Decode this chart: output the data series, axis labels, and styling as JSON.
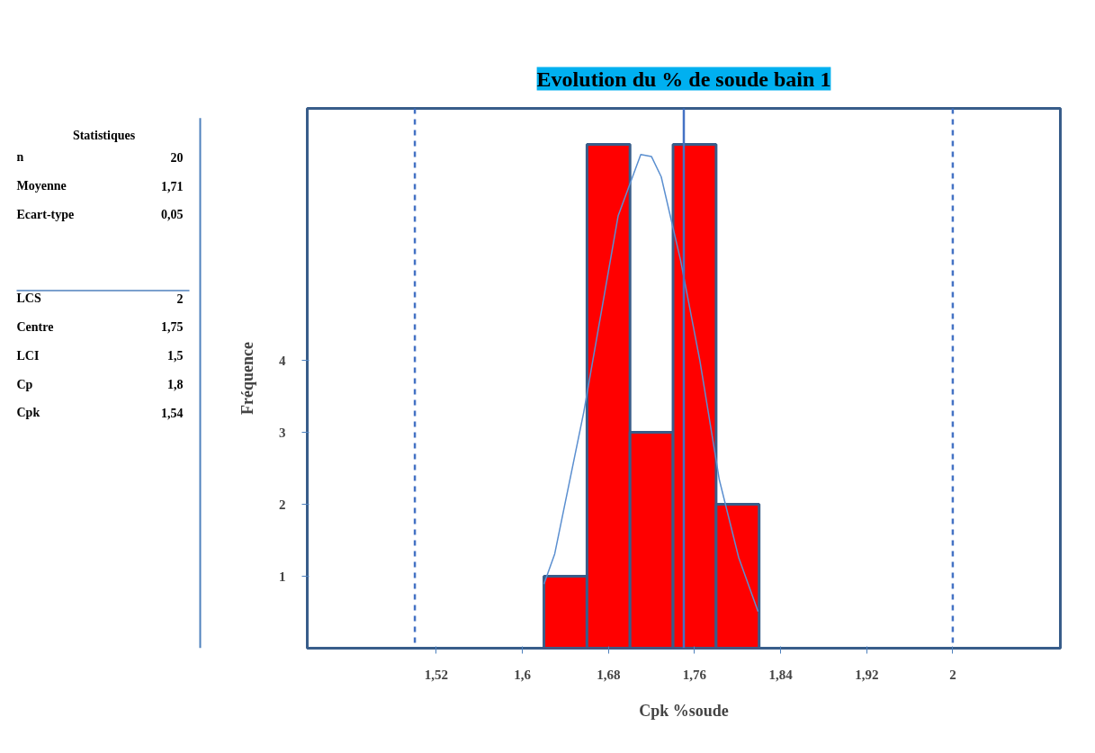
{
  "chart_data": [
    {
      "type": "other",
      "title": "Statistiques",
      "categories": [
        "n",
        "Moyenne",
        "Ecart-type",
        "LCS",
        "Centre",
        "LCI",
        "Cp",
        "Cpk"
      ],
      "value_labels": [
        "20",
        "1,71",
        "0,05",
        "2",
        "1,75",
        "1,5",
        "1,8",
        "1,54"
      ]
    },
    {
      "type": "histogram",
      "title": "Evolution du % de soude bain 1",
      "xlabel": "Cpk %soude",
      "ylabel": "Fréquence",
      "bins": [
        1.62,
        1.66,
        1.7,
        1.74,
        1.78,
        1.82
      ],
      "values": [
        1,
        7,
        3,
        7,
        2
      ],
      "color": "#ff0000",
      "series": [
        {
          "type": "line",
          "color": "#5b8fd0",
          "x": [
            1.62,
            1.63,
            1.657,
            1.689,
            1.71,
            1.72,
            1.729,
            1.747,
            1.765,
            1.783,
            1.801,
            1.819
          ],
          "values": [
            0.89,
            1.31,
            3.28,
            6.01,
            6.86,
            6.83,
            6.55,
            5.39,
            3.99,
            2.34,
            1.26,
            0.51
          ]
        }
      ],
      "xlim": [
        1.4,
        2.1
      ],
      "xticks": [
        {
          "value": 1.52,
          "label": "1,52"
        },
        {
          "value": 1.6,
          "label": "1,6"
        },
        {
          "value": 1.68,
          "label": "1,68"
        },
        {
          "value": 1.76,
          "label": "1,76"
        },
        {
          "value": 1.84,
          "label": "1,84"
        },
        {
          "value": 1.92,
          "label": "1,92"
        },
        2
      ],
      "ylim": [
        0,
        7.5
      ],
      "yticks": [
        1,
        2,
        3,
        4
      ],
      "ref_lines": [
        {
          "axis": "x",
          "value": 1.5,
          "color": "#4472c4",
          "line_style": "dashed"
        },
        {
          "axis": "x",
          "value": 2,
          "color": "#4472c4",
          "line_style": "dashed"
        },
        {
          "axis": "x",
          "value": 1.75,
          "color": "#4472c4",
          "line_style": "solid"
        }
      ],
      "grid": false
    }
  ]
}
